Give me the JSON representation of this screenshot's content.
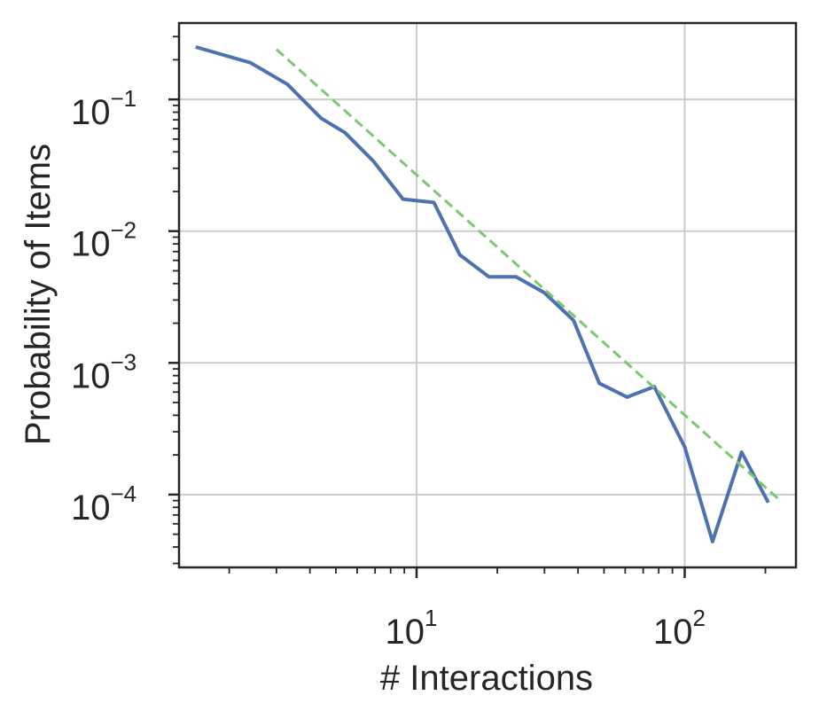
{
  "chart_data": {
    "type": "line",
    "xlabel": "# Interactions",
    "ylabel": "Probability of Items",
    "x_scale": "log",
    "y_scale": "log",
    "xlim": [
      1.3,
      260
    ],
    "ylim": [
      2.8e-05,
      0.38
    ],
    "grid": true,
    "x_ticks": [
      {
        "value": 10,
        "base": "10",
        "exp": "1"
      },
      {
        "value": 100,
        "base": "10",
        "exp": "2"
      }
    ],
    "y_ticks": [
      {
        "value": 0.1,
        "base": "10",
        "exp": "−1"
      },
      {
        "value": 0.01,
        "base": "10",
        "exp": "−2"
      },
      {
        "value": 0.001,
        "base": "10",
        "exp": "−3"
      },
      {
        "value": 0.0001,
        "base": "10",
        "exp": "−4"
      }
    ],
    "series": [
      {
        "style": "solid",
        "color": "#4C72B0",
        "x": [
          1.5,
          2.4,
          3.3,
          4.4,
          5.4,
          6.9,
          8.9,
          11.6,
          14.5,
          18.6,
          23.5,
          30,
          38.5,
          48,
          61,
          77,
          100,
          127,
          163,
          205
        ],
        "y": [
          0.25,
          0.19,
          0.13,
          0.072,
          0.056,
          0.034,
          0.0175,
          0.0165,
          0.0066,
          0.0045,
          0.0045,
          0.0034,
          0.0021,
          0.0007,
          0.00055,
          0.00066,
          0.00023,
          4.4e-05,
          0.00021,
          8.7e-05
        ]
      },
      {
        "style": "dashed",
        "color": "#7BC96F",
        "x": [
          3,
          230
        ],
        "y": [
          0.24,
          8.8e-05
        ]
      }
    ]
  }
}
